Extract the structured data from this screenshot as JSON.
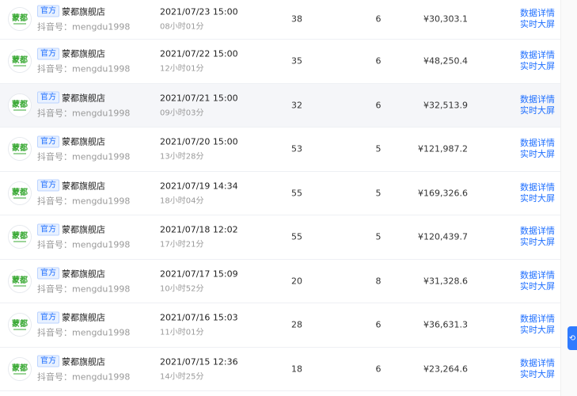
{
  "rows": [
    {
      "badge": "官方",
      "shop": "蒙都旗舰店",
      "douyin": "抖音号：mengdu1998",
      "date": "2021/07/23 15:00",
      "duration": "08小时01分",
      "col1": "38",
      "col2": "6",
      "amount": "¥30,303.1",
      "op1": "数据详情",
      "op2": "实时大屏"
    },
    {
      "badge": "官方",
      "shop": "蒙都旗舰店",
      "douyin": "抖音号：mengdu1998",
      "date": "2021/07/22 15:00",
      "duration": "12小时01分",
      "col1": "35",
      "col2": "6",
      "amount": "¥48,250.4",
      "op1": "数据详情",
      "op2": "实时大屏"
    },
    {
      "badge": "官方",
      "shop": "蒙都旗舰店",
      "douyin": "抖音号：mengdu1998",
      "date": "2021/07/21 15:00",
      "duration": "09小时03分",
      "col1": "32",
      "col2": "6",
      "amount": "¥32,513.9",
      "op1": "数据详情",
      "op2": "实时大屏"
    },
    {
      "badge": "官方",
      "shop": "蒙都旗舰店",
      "douyin": "抖音号：mengdu1998",
      "date": "2021/07/20 15:00",
      "duration": "13小时28分",
      "col1": "53",
      "col2": "5",
      "amount": "¥121,987.2",
      "op1": "数据详情",
      "op2": "实时大屏"
    },
    {
      "badge": "官方",
      "shop": "蒙都旗舰店",
      "douyin": "抖音号：mengdu1998",
      "date": "2021/07/19 14:34",
      "duration": "18小时04分",
      "col1": "55",
      "col2": "5",
      "amount": "¥169,326.6",
      "op1": "数据详情",
      "op2": "实时大屏"
    },
    {
      "badge": "官方",
      "shop": "蒙都旗舰店",
      "douyin": "抖音号：mengdu1998",
      "date": "2021/07/18 12:02",
      "duration": "17小时21分",
      "col1": "55",
      "col2": "5",
      "amount": "¥120,439.7",
      "op1": "数据详情",
      "op2": "实时大屏"
    },
    {
      "badge": "官方",
      "shop": "蒙都旗舰店",
      "douyin": "抖音号：mengdu1998",
      "date": "2021/07/17 15:09",
      "duration": "10小时52分",
      "col1": "20",
      "col2": "8",
      "amount": "¥31,328.6",
      "op1": "数据详情",
      "op2": "实时大屏"
    },
    {
      "badge": "官方",
      "shop": "蒙都旗舰店",
      "douyin": "抖音号：mengdu1998",
      "date": "2021/07/16 15:03",
      "duration": "11小时01分",
      "col1": "28",
      "col2": "6",
      "amount": "¥36,631.3",
      "op1": "数据详情",
      "op2": "实时大屏"
    },
    {
      "badge": "官方",
      "shop": "蒙都旗舰店",
      "douyin": "抖音号：mengdu1998",
      "date": "2021/07/15 12:36",
      "duration": "14小时25分",
      "col1": "18",
      "col2": "6",
      "amount": "¥23,264.6",
      "op1": "数据详情",
      "op2": "实时大屏"
    }
  ],
  "hover_row_index": 2,
  "colors": {
    "link": "#1f6fff",
    "badge_bg": "#e8f1ff",
    "logo_green": "#3aa935"
  }
}
